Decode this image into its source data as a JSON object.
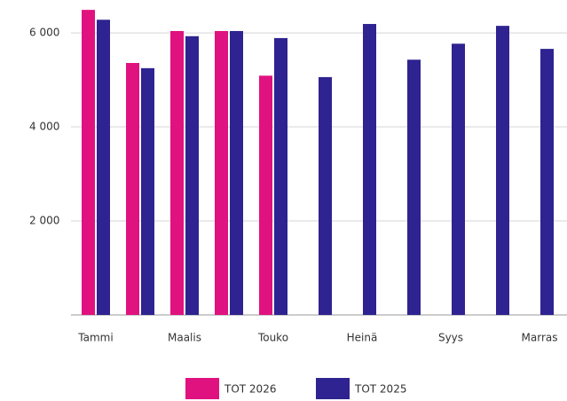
{
  "chart_data": {
    "type": "bar",
    "categories": [
      "Tammi",
      null,
      "Maalis",
      null,
      "Touko",
      null,
      "Heinä",
      null,
      "Syys",
      null,
      "Marras"
    ],
    "series": [
      {
        "name": "TOT 2026",
        "color": "#e0127f",
        "values": [
          6490,
          5360,
          6040,
          6040,
          5090,
          null,
          null,
          null,
          null,
          null,
          null
        ]
      },
      {
        "name": "TOT 2025",
        "color": "#2e2390",
        "values": [
          6280,
          5250,
          5930,
          6040,
          5890,
          5060,
          6190,
          5430,
          5770,
          6150,
          5660
        ]
      }
    ],
    "ylim": [
      0,
      6700
    ],
    "yticks": [
      {
        "value": 2000,
        "label": "2 000"
      },
      {
        "value": 4000,
        "label": "4 000"
      },
      {
        "value": 6000,
        "label": "6 000"
      }
    ],
    "grid": true,
    "legend": "bottom"
  }
}
